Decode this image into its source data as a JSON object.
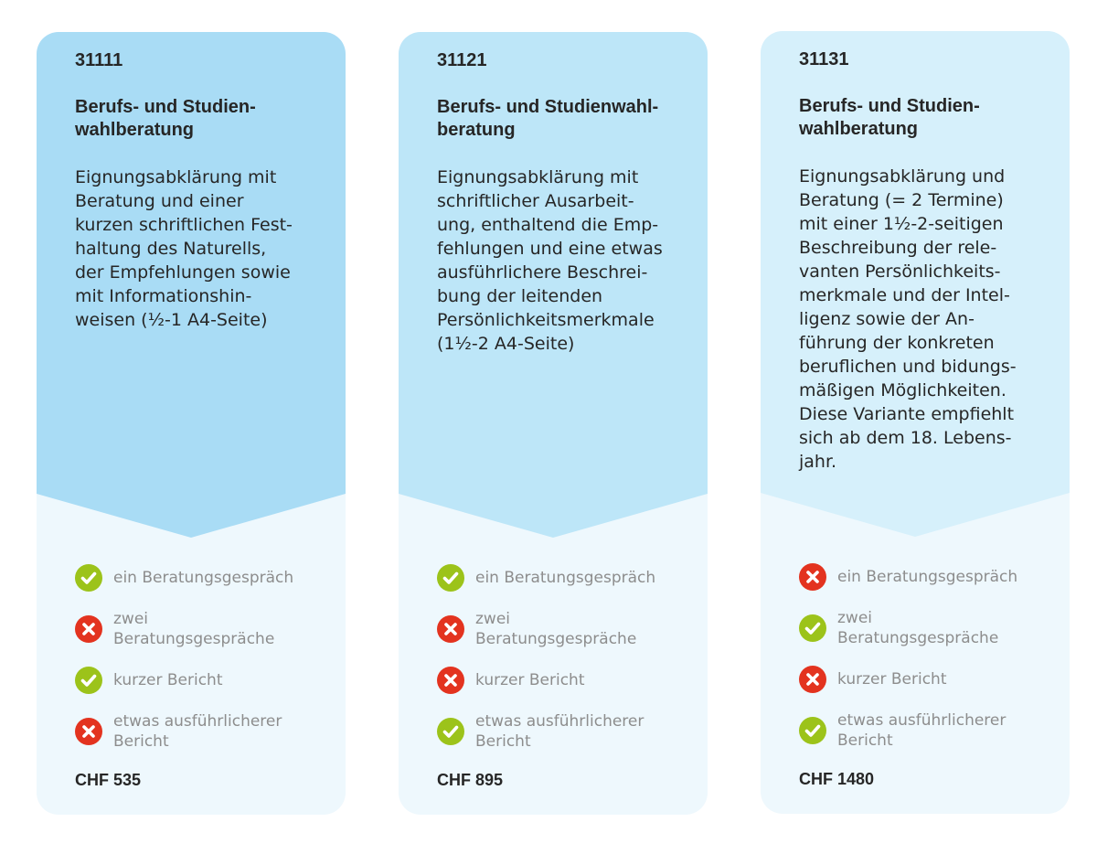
{
  "colors": {
    "card_top": [
      "#a9dcf5",
      "#bde6f8",
      "#d6f0fb"
    ],
    "card_bottom": "#eef8fd",
    "check": "#9cc31a",
    "cross": "#e3331f"
  },
  "cards": [
    {
      "code": "31111",
      "title": "Berufs- und Studien-\nwahlberatung",
      "description": "Eignungsabklärung mit\nBeratung und einer\nkurzen schriftlichen Fest-\nhaltung des Naturells,\nder Empfehlungen sowie\nmit Informationshin-\nweisen (½-1 A4-Seite)",
      "features": [
        {
          "icon": "check-icon",
          "label": "ein Beratungsgespräch"
        },
        {
          "icon": "cross-icon",
          "label": "zwei\nBeratungsgespräche"
        },
        {
          "icon": "check-icon",
          "label": "kurzer Bericht"
        },
        {
          "icon": "cross-icon",
          "label": "etwas ausführlicherer\nBericht"
        }
      ],
      "price": "CHF 535"
    },
    {
      "code": "31121",
      "title": "Berufs- und Studienwahl-\nberatung",
      "description": "Eignungsabklärung mit\nschriftlicher Ausarbeit-\nung, enthaltend die Emp-\nfehlungen und eine etwas\nausführlichere Beschrei-\nbung der leitenden\nPersönlichkeitsmerkmale\n(1½-2 A4-Seite)",
      "features": [
        {
          "icon": "check-icon",
          "label": "ein Beratungsgespräch"
        },
        {
          "icon": "cross-icon",
          "label": "zwei\nBeratungsgespräche"
        },
        {
          "icon": "cross-icon",
          "label": "kurzer Bericht"
        },
        {
          "icon": "check-icon",
          "label": "etwas ausführlicherer\nBericht"
        }
      ],
      "price": "CHF 895"
    },
    {
      "code": "31131",
      "title": "Berufs- und Studien-\nwahlberatung",
      "description": "Eignungsabklärung und\nBeratung (= 2 Termine)\nmit einer 1½-2-seitigen\nBeschreibung der rele-\nvanten Persönlichkeits-\nmerkmale und der Intel-\nligenz sowie der An-\nführung der konkreten\nberuflichen und bidungs-\nmäßigen Möglichkeiten.\nDiese Variante empfiehlt\nsich ab dem 18. Lebens-\njahr.",
      "features": [
        {
          "icon": "cross-icon",
          "label": "ein Beratungsgespräch"
        },
        {
          "icon": "check-icon",
          "label": "zwei\nBeratungsgespräche"
        },
        {
          "icon": "cross-icon",
          "label": "kurzer Bericht"
        },
        {
          "icon": "check-icon",
          "label": "etwas ausführlicherer\nBericht"
        }
      ],
      "price": "CHF 1480"
    }
  ]
}
